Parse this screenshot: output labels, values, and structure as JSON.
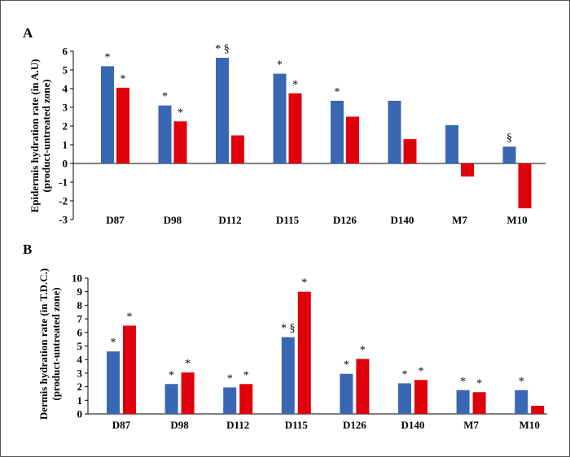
{
  "chart_data": [
    {
      "panel": "A",
      "type": "bar",
      "categories": [
        "D87",
        "D98",
        "D112",
        "D115",
        "D126",
        "D140",
        "M7",
        "M10"
      ],
      "series": [
        {
          "color": "#3a67b3",
          "values": [
            5.2,
            3.1,
            5.65,
            4.8,
            3.35,
            3.35,
            2.05,
            0.9
          ]
        },
        {
          "color": "#e0000b",
          "values": [
            4.05,
            2.25,
            1.5,
            3.75,
            2.5,
            1.3,
            -0.7,
            -2.4
          ]
        }
      ],
      "annotations": [
        [
          "*",
          "*"
        ],
        [
          "*",
          "*"
        ],
        [
          "* §",
          ""
        ],
        [
          "*",
          "*"
        ],
        [
          "*",
          ""
        ],
        [
          "",
          ""
        ],
        [
          "",
          ""
        ],
        [
          "§",
          ""
        ]
      ],
      "ylabel_lines": [
        "Epidermis hydration rate (in A.U)",
        "(product-untreated zone)"
      ],
      "ylim": [
        -3,
        6
      ],
      "yticks": [
        "-3",
        "-2",
        "-1",
        "0",
        "1",
        "2",
        "3",
        "4",
        "5",
        "6"
      ]
    },
    {
      "panel": "B",
      "type": "bar",
      "categories": [
        "D87",
        "D98",
        "D112",
        "D115",
        "D126",
        "D140",
        "M7",
        "M10"
      ],
      "series": [
        {
          "color": "#3a67b3",
          "values": [
            4.6,
            2.2,
            1.95,
            5.65,
            2.95,
            2.25,
            1.75,
            1.75
          ]
        },
        {
          "color": "#e0000b",
          "values": [
            6.5,
            3.05,
            2.2,
            9.0,
            4.05,
            2.5,
            1.6,
            0.6
          ]
        }
      ],
      "annotations": [
        [
          "*",
          "*"
        ],
        [
          "*",
          "*"
        ],
        [
          "*",
          "*"
        ],
        [
          "* §",
          "*"
        ],
        [
          "*",
          "*"
        ],
        [
          "*",
          "*"
        ],
        [
          "*",
          "*"
        ],
        [
          "*",
          ""
        ]
      ],
      "ylabel_lines": [
        "Dermis hydration rate (in T.D.C.)",
        "(product-untreated zone)"
      ],
      "ylim": [
        0,
        10
      ],
      "yticks": [
        "0",
        "1",
        "2",
        "3",
        "4",
        "5",
        "6",
        "7",
        "8",
        "9",
        "10"
      ]
    }
  ]
}
